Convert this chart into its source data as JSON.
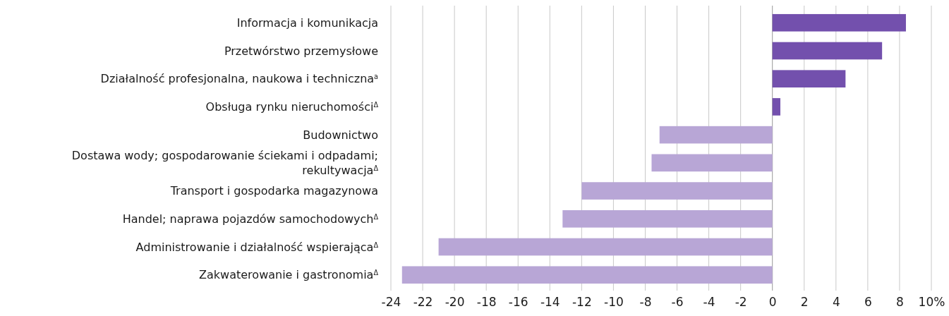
{
  "chart_data": {
    "type": "bar",
    "orientation": "horizontal",
    "categories": [
      "Informacja i komunikacja",
      "Przetwórstwo przemysłowe",
      "Działalność profesjonalna, naukowa i techniczna$^{a}$",
      "Obsługa rynku nieruchomości$^{Δ}$",
      "Budownictwo",
      "Dostawa wody; gospodarowanie ściekami i odpadami; rekultywacja$^{Δ}$",
      "Transport i gospodarka magazynowa",
      "Handel; naprawa pojazdów samochodowych$^{Δ}$",
      "Administrowanie i działalność wspierająca$^{Δ}$",
      "Zakwaterowanie i gastronomia$^{Δ}$"
    ],
    "values": [
      8.4,
      6.9,
      4.6,
      0.5,
      -7.1,
      -7.6,
      -12.0,
      -13.2,
      -21.0,
      -23.3
    ],
    "colors": [
      "#7350ad",
      "#7350ad",
      "#7350ad",
      "#7350ad",
      "#b8a6d6",
      "#b8a6d6",
      "#b8a6d6",
      "#b8a6d6",
      "#b8a6d6",
      "#b8a6d6"
    ],
    "xlim": [
      -24,
      10
    ],
    "xticks": [
      -24,
      -22,
      -20,
      -18,
      -16,
      -14,
      -12,
      -10,
      -8,
      -6,
      -4,
      -2,
      0,
      2,
      4,
      6,
      8,
      {
        "value": 10,
        "label": "10%"
      }
    ],
    "grid": "x"
  }
}
